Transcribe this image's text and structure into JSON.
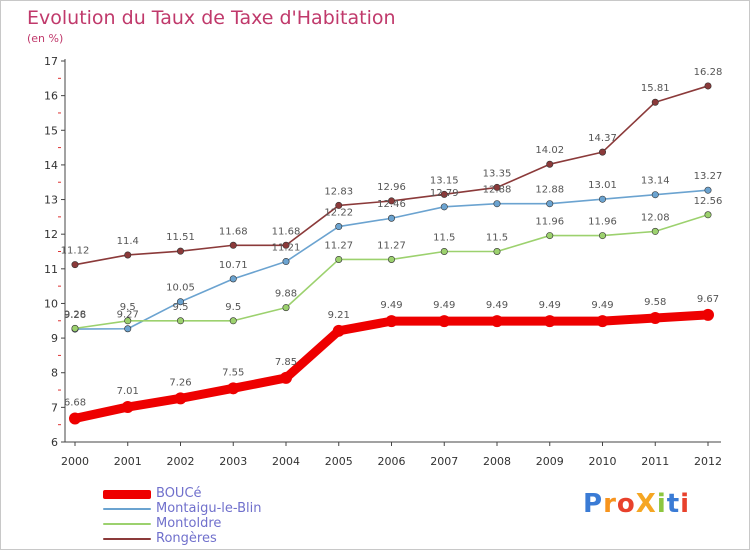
{
  "header": {
    "title": "Evolution du Taux de Taxe d'Habitation",
    "subtitle": "(en %)"
  },
  "chart_data": {
    "type": "line",
    "title": "Evolution du Taux de Taxe d'Habitation",
    "subtitle": "(en %)",
    "xlabel": "",
    "ylabel": "",
    "x": [
      "2000",
      "2001",
      "2002",
      "2003",
      "2004",
      "2005",
      "2006",
      "2007",
      "2008",
      "2009",
      "2010",
      "2011",
      "2012"
    ],
    "ylim": [
      6,
      17
    ],
    "yticks": [
      "6",
      "7",
      "8",
      "9",
      "10",
      "11",
      "12",
      "13",
      "14",
      "15",
      "16",
      "17"
    ],
    "grid": false,
    "legend": "bottom-left",
    "series": [
      {
        "name": "BOUCé",
        "color": "#ee0000",
        "values": [
          6.68,
          7.01,
          7.26,
          7.55,
          7.85,
          9.21,
          9.49,
          9.49,
          9.49,
          9.49,
          9.49,
          9.58,
          9.67
        ],
        "labels": [
          "6.68",
          "7.01",
          "7.26",
          "7.55",
          "7.85",
          "9.21",
          "9.49",
          "9.49",
          "9.49",
          "9.49",
          "9.49",
          "9.58",
          "9.67"
        ]
      },
      {
        "name": "Montaigu-le-Blin",
        "color": "#6ba3d0",
        "values": [
          9.26,
          9.27,
          10.05,
          10.71,
          11.21,
          12.22,
          12.46,
          12.79,
          12.88,
          12.88,
          13.01,
          13.14,
          13.27
        ],
        "labels": [
          "9.26",
          "9.27",
          "10.05",
          "10.71",
          "11.21",
          "12.22",
          "12.46",
          "12.79",
          "12.88",
          "12.88",
          "13.01",
          "13.14",
          "13.27"
        ]
      },
      {
        "name": "Montoldre",
        "color": "#9cd16e",
        "values": [
          9.28,
          9.5,
          9.5,
          9.5,
          9.88,
          11.27,
          11.27,
          11.5,
          11.5,
          11.96,
          11.96,
          12.08,
          12.56
        ],
        "labels": [
          "9.28",
          "9.5",
          "9.5",
          "9.5",
          "9.88",
          "11.27",
          "11.27",
          "11.5",
          "11.5",
          "11.96",
          "11.96",
          "12.08",
          "12.56"
        ]
      },
      {
        "name": "Rongères",
        "color": "#8b3a3a",
        "values": [
          11.12,
          11.4,
          11.51,
          11.68,
          11.68,
          12.83,
          12.96,
          13.15,
          13.35,
          14.02,
          14.37,
          15.81,
          16.28
        ],
        "labels": [
          "11.12",
          "11.4",
          "11.51",
          "11.68",
          "11.68",
          "12.83",
          "12.96",
          "13.15",
          "13.35",
          "14.02",
          "14.37",
          "15.81",
          "16.28"
        ]
      }
    ]
  },
  "legend": {
    "items": [
      {
        "label": "BOUCé",
        "color": "#ee0000"
      },
      {
        "label": "Montaigu-le-Blin",
        "color": "#6ba3d0"
      },
      {
        "label": "Montoldre",
        "color": "#9cd16e"
      },
      {
        "label": "Rongères",
        "color": "#8b3a3a"
      }
    ]
  },
  "logo": {
    "text": "ProXiti",
    "colors": [
      "#3a7bd5",
      "#f7941d",
      "#e8412c",
      "#f5a623",
      "#8dc63f",
      "#3a7bd5",
      "#e8412c"
    ]
  }
}
